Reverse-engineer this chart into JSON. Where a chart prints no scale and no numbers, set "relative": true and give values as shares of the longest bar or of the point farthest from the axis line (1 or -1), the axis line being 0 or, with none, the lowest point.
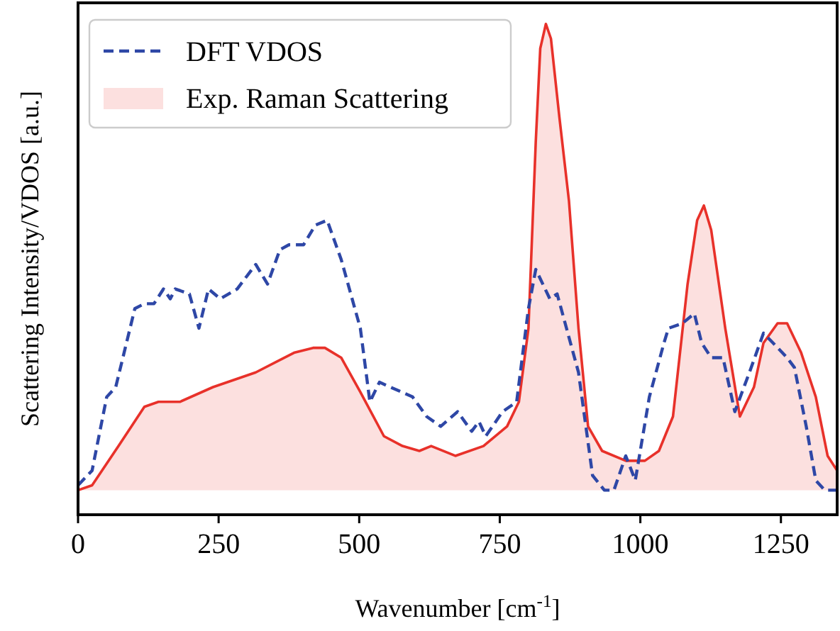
{
  "chart_data": {
    "type": "line",
    "relative": true,
    "xlabel": "Wavenumber [cm$^{-1}$]",
    "ylabel": "Scattering Intensity/VDOS [a.u.]",
    "xlim": [
      0,
      1350
    ],
    "xticks": [
      0,
      250,
      500,
      750,
      1000,
      1250
    ],
    "legend": "top left",
    "grid": false,
    "series": [
      {
        "name": "DFT VDOS",
        "line_style": "dashed",
        "color": "#2e47a6",
        "x": [
          0,
          25,
          51,
          67,
          101,
          118,
          135,
          152,
          164,
          173,
          198,
          215,
          232,
          253,
          283,
          316,
          337,
          359,
          375,
          401,
          422,
          443,
          468,
          502,
          519,
          536,
          595,
          620,
          645,
          675,
          700,
          713,
          725,
          755,
          780,
          801,
          814,
          839,
          852,
          890,
          915,
          936,
          953,
          974,
          991,
          1016,
          1042,
          1050,
          1075,
          1096,
          1109,
          1126,
          1147,
          1168,
          1194,
          1219,
          1236,
          1261,
          1274,
          1295,
          1312,
          1328,
          1350
        ],
        "values": [
          0.06,
          0.09,
          0.24,
          0.26,
          0.42,
          0.43,
          0.43,
          0.46,
          0.44,
          0.46,
          0.45,
          0.38,
          0.46,
          0.44,
          0.46,
          0.51,
          0.47,
          0.54,
          0.55,
          0.55,
          0.59,
          0.6,
          0.52,
          0.38,
          0.23,
          0.27,
          0.24,
          0.2,
          0.18,
          0.21,
          0.17,
          0.19,
          0.16,
          0.21,
          0.23,
          0.42,
          0.5,
          0.44,
          0.45,
          0.29,
          0.08,
          0.05,
          0.05,
          0.12,
          0.07,
          0.24,
          0.35,
          0.38,
          0.39,
          0.41,
          0.35,
          0.32,
          0.32,
          0.21,
          0.29,
          0.37,
          0.35,
          0.32,
          0.3,
          0.18,
          0.07,
          0.05,
          0.05
        ]
      },
      {
        "name": "Exp. Raman Scattering",
        "type": "area",
        "color": "#e8312a",
        "x": [
          0,
          25,
          72,
          118,
          143,
          181,
          240,
          316,
          384,
          418,
          439,
          468,
          502,
          544,
          577,
          607,
          628,
          671,
          721,
          763,
          784,
          801,
          814,
          822,
          832,
          841,
          856,
          873,
          890,
          907,
          932,
          974,
          1008,
          1033,
          1058,
          1084,
          1101,
          1113,
          1126,
          1151,
          1177,
          1202,
          1219,
          1244,
          1261,
          1286,
          1312,
          1333,
          1350
        ],
        "values": [
          0.05,
          0.06,
          0.14,
          0.22,
          0.23,
          0.23,
          0.26,
          0.29,
          0.33,
          0.34,
          0.34,
          0.32,
          0.25,
          0.16,
          0.14,
          0.13,
          0.14,
          0.12,
          0.14,
          0.18,
          0.23,
          0.38,
          0.76,
          0.95,
          1,
          0.97,
          0.81,
          0.64,
          0.38,
          0.18,
          0.13,
          0.11,
          0.11,
          0.13,
          0.2,
          0.47,
          0.6,
          0.63,
          0.58,
          0.38,
          0.2,
          0.26,
          0.35,
          0.39,
          0.39,
          0.33,
          0.24,
          0.12,
          0.09
        ]
      }
    ]
  }
}
